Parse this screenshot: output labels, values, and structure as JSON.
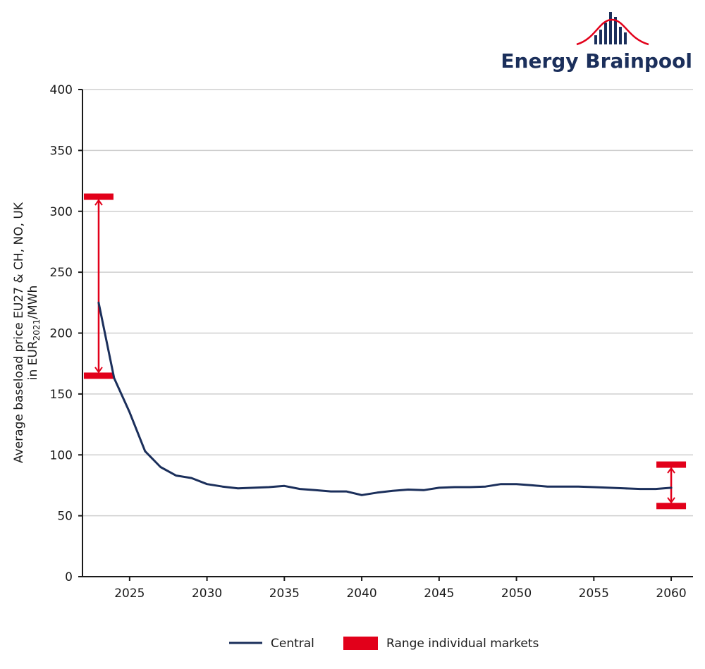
{
  "logo": {
    "text": "Energy Brainpool"
  },
  "chart_data": {
    "type": "line",
    "title": "",
    "xlabel": "",
    "ylabel_line1": "Average baseload price EU27 & CH, NO, UK",
    "ylabel_line2_prefix": "in EUR",
    "ylabel_line2_sub": "2021",
    "ylabel_line2_suffix": "/MWh",
    "xlim": [
      2022,
      2061
    ],
    "ylim": [
      0,
      400
    ],
    "xticks": [
      2025,
      2030,
      2035,
      2040,
      2045,
      2050,
      2055,
      2060
    ],
    "yticks": [
      0,
      50,
      100,
      150,
      200,
      250,
      300,
      350,
      400
    ],
    "grid": "horizontal",
    "legend_position": "bottom",
    "series": [
      {
        "name": "Central",
        "color": "#1b2f5b",
        "x": [
          2023,
          2024,
          2025,
          2026,
          2027,
          2028,
          2029,
          2030,
          2031,
          2032,
          2033,
          2034,
          2035,
          2036,
          2037,
          2038,
          2039,
          2040,
          2041,
          2042,
          2043,
          2044,
          2045,
          2046,
          2047,
          2048,
          2049,
          2050,
          2051,
          2052,
          2053,
          2054,
          2055,
          2056,
          2057,
          2058,
          2059,
          2060
        ],
        "values": [
          225,
          163,
          135,
          103,
          90,
          83,
          81,
          76,
          74,
          72.5,
          73,
          73.5,
          74.5,
          72,
          71,
          70,
          70,
          67,
          69,
          70.5,
          71.5,
          71,
          73,
          73.5,
          73.5,
          74,
          76,
          76,
          75,
          74,
          74,
          74,
          73.5,
          73,
          72.5,
          72,
          72,
          73
        ]
      }
    ],
    "ranges": [
      {
        "name": "Range individual markets",
        "color": "#e2001a",
        "x": 2023,
        "low": 165,
        "high": 312
      },
      {
        "name": "Range individual markets",
        "color": "#e2001a",
        "x": 2060,
        "low": 58,
        "high": 92
      }
    ],
    "legend": [
      {
        "label": "Central",
        "color": "#1b2f5b",
        "kind": "line"
      },
      {
        "label": "Range individual markets",
        "color": "#e2001a",
        "kind": "box"
      }
    ]
  }
}
